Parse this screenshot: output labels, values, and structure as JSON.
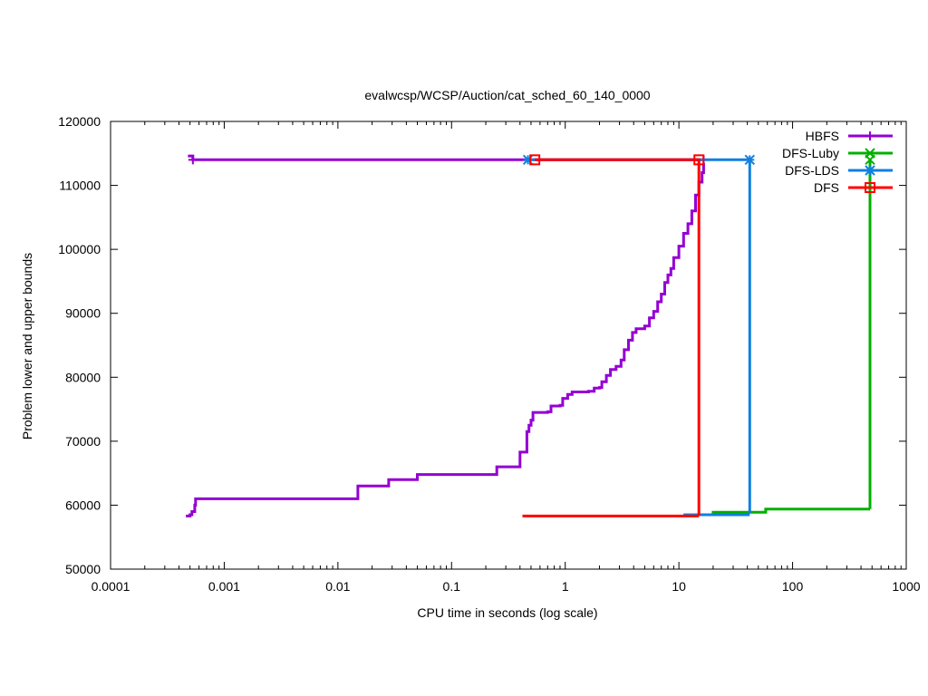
{
  "chart_data": {
    "type": "line",
    "title": "evalwcsp/WCSP/Auction/cat_sched_60_140_0000",
    "xlabel": "CPU time in seconds (log scale)",
    "ylabel": "Problem lower and upper bounds",
    "xscale": "log",
    "xlim": [
      0.0001,
      1000
    ],
    "ylim": [
      50000,
      120000
    ],
    "xticks": [
      {
        "value": 0.0001,
        "label": "0.0001"
      },
      {
        "value": 0.001,
        "label": "0.001"
      },
      {
        "value": 0.01,
        "label": "0.01"
      },
      {
        "value": 0.1,
        "label": "0.1"
      },
      {
        "value": 1,
        "label": "1"
      },
      {
        "value": 10,
        "label": "10"
      },
      {
        "value": 100,
        "label": "100"
      },
      {
        "value": 1000,
        "label": "1000"
      }
    ],
    "yticks": [
      {
        "value": 50000,
        "label": "50000"
      },
      {
        "value": 60000,
        "label": "60000"
      },
      {
        "value": 70000,
        "label": "70000"
      },
      {
        "value": 80000,
        "label": "80000"
      },
      {
        "value": 90000,
        "label": "90000"
      },
      {
        "value": 100000,
        "label": "100000"
      },
      {
        "value": 110000,
        "label": "110000"
      },
      {
        "value": 120000,
        "label": "120000"
      }
    ],
    "grid": false,
    "legend_position": "top-right",
    "series": [
      {
        "name": "HBFS",
        "color": "#9400d3",
        "marker": "plus",
        "upper": [
          [
            0.00048,
            114600
          ],
          [
            0.00053,
            114000
          ],
          [
            0.45,
            114000
          ],
          [
            16.5,
            114000
          ]
        ],
        "upper_markers": [
          [
            0.00053,
            114000
          ],
          [
            16.5,
            114000
          ]
        ],
        "lower": [
          [
            0.00046,
            58300
          ],
          [
            0.0005,
            58500
          ],
          [
            0.00052,
            59000
          ],
          [
            0.00055,
            60000
          ],
          [
            0.00056,
            61000
          ],
          [
            0.015,
            61000
          ],
          [
            0.015,
            63000
          ],
          [
            0.028,
            63000
          ],
          [
            0.028,
            64000
          ],
          [
            0.05,
            64000
          ],
          [
            0.05,
            64800
          ],
          [
            0.25,
            64800
          ],
          [
            0.25,
            66000
          ],
          [
            0.4,
            66000
          ],
          [
            0.4,
            68300
          ],
          [
            0.45,
            68300
          ],
          [
            0.46,
            71500
          ],
          [
            0.48,
            72500
          ],
          [
            0.5,
            73300
          ],
          [
            0.52,
            74500
          ],
          [
            0.7,
            74600
          ],
          [
            0.75,
            75500
          ],
          [
            0.9,
            75600
          ],
          [
            0.95,
            76700
          ],
          [
            1.05,
            77300
          ],
          [
            1.15,
            77700
          ],
          [
            1.6,
            77800
          ],
          [
            1.8,
            78300
          ],
          [
            2.0,
            78400
          ],
          [
            2.1,
            79300
          ],
          [
            2.3,
            80300
          ],
          [
            2.5,
            81200
          ],
          [
            2.8,
            81700
          ],
          [
            3.1,
            82700
          ],
          [
            3.3,
            84300
          ],
          [
            3.6,
            85800
          ],
          [
            3.9,
            87000
          ],
          [
            4.2,
            87600
          ],
          [
            5.0,
            88000
          ],
          [
            5.5,
            89300
          ],
          [
            6.0,
            90300
          ],
          [
            6.5,
            91800
          ],
          [
            7.0,
            93000
          ],
          [
            7.5,
            94800
          ],
          [
            8.0,
            96000
          ],
          [
            8.5,
            97000
          ],
          [
            9.0,
            98700
          ],
          [
            10.0,
            100500
          ],
          [
            11.0,
            102500
          ],
          [
            12.0,
            104000
          ],
          [
            13.0,
            106000
          ],
          [
            14.0,
            108500
          ],
          [
            15.0,
            110500
          ],
          [
            16.0,
            112000
          ],
          [
            16.5,
            113500
          ]
        ]
      },
      {
        "name": "DFS-Luby",
        "color": "#00b000",
        "marker": "cross",
        "upper": [
          [
            480,
            114000
          ],
          [
            480,
            59400
          ]
        ],
        "upper_markers": [
          [
            480,
            114000
          ]
        ],
        "lower": [
          [
            11,
            58500
          ],
          [
            20,
            58500
          ],
          [
            20,
            58900
          ],
          [
            58,
            58900
          ],
          [
            58,
            59400
          ],
          [
            480,
            59400
          ]
        ]
      },
      {
        "name": "DFS-LDS",
        "color": "#1080e0",
        "marker": "star",
        "upper": [
          [
            0.47,
            114000
          ],
          [
            42,
            114000
          ],
          [
            42,
            58700
          ]
        ],
        "upper_markers": [
          [
            0.47,
            114000
          ],
          [
            42,
            114000
          ]
        ],
        "lower": [
          [
            11,
            58500
          ],
          [
            42,
            58500
          ]
        ]
      },
      {
        "name": "DFS",
        "color": "#ff0000",
        "marker": "square",
        "upper": [
          [
            0.54,
            114000
          ],
          [
            15,
            114000
          ],
          [
            15,
            58300
          ]
        ],
        "upper_markers": [
          [
            0.54,
            114000
          ],
          [
            15,
            114000
          ]
        ],
        "lower": [
          [
            0.42,
            58300
          ],
          [
            15,
            58300
          ]
        ]
      }
    ]
  }
}
